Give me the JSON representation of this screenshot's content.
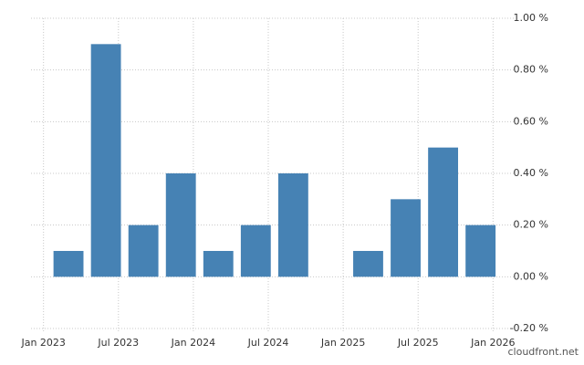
{
  "chart_data": {
    "type": "bar",
    "x": [
      "2023-03",
      "2023-06",
      "2023-09",
      "2023-12",
      "2024-03",
      "2024-06",
      "2024-09",
      "2024-12",
      "2025-03",
      "2025-06",
      "2025-09",
      "2025-12"
    ],
    "values": [
      0.1,
      0.9,
      0.2,
      0.4,
      0.1,
      0.2,
      0.4,
      0,
      0.1,
      0.3,
      0.5,
      0.2
    ],
    "color": "#4682b4",
    "xlim": [
      "2022-12",
      "2026-02"
    ],
    "xticks": [
      {
        "value": "2023-01",
        "label": "Jan 2023"
      },
      {
        "value": "2023-07",
        "label": "Jul 2023"
      },
      {
        "value": "2024-01",
        "label": "Jan 2024"
      },
      {
        "value": "2024-07",
        "label": "Jul 2024"
      },
      {
        "value": "2025-01",
        "label": "Jan 2025"
      },
      {
        "value": "2025-07",
        "label": "Jul 2025"
      },
      {
        "value": "2026-01",
        "label": "Jan 2026"
      }
    ],
    "ylim": [
      -0.2,
      1.0
    ],
    "yticks": [
      {
        "value": -0.2,
        "label": "-0.20 %"
      },
      {
        "value": 0,
        "label": "0.00 %"
      },
      {
        "value": 0.2,
        "label": "0.20 %"
      },
      {
        "value": 0.4,
        "label": "0.40 %"
      },
      {
        "value": 0.6,
        "label": "0.60 %"
      },
      {
        "value": 0.8,
        "label": "0.80 %"
      },
      {
        "value": 1.0,
        "label": "1.00 %"
      }
    ],
    "grid": true,
    "watermark": "cloudfront.net"
  }
}
